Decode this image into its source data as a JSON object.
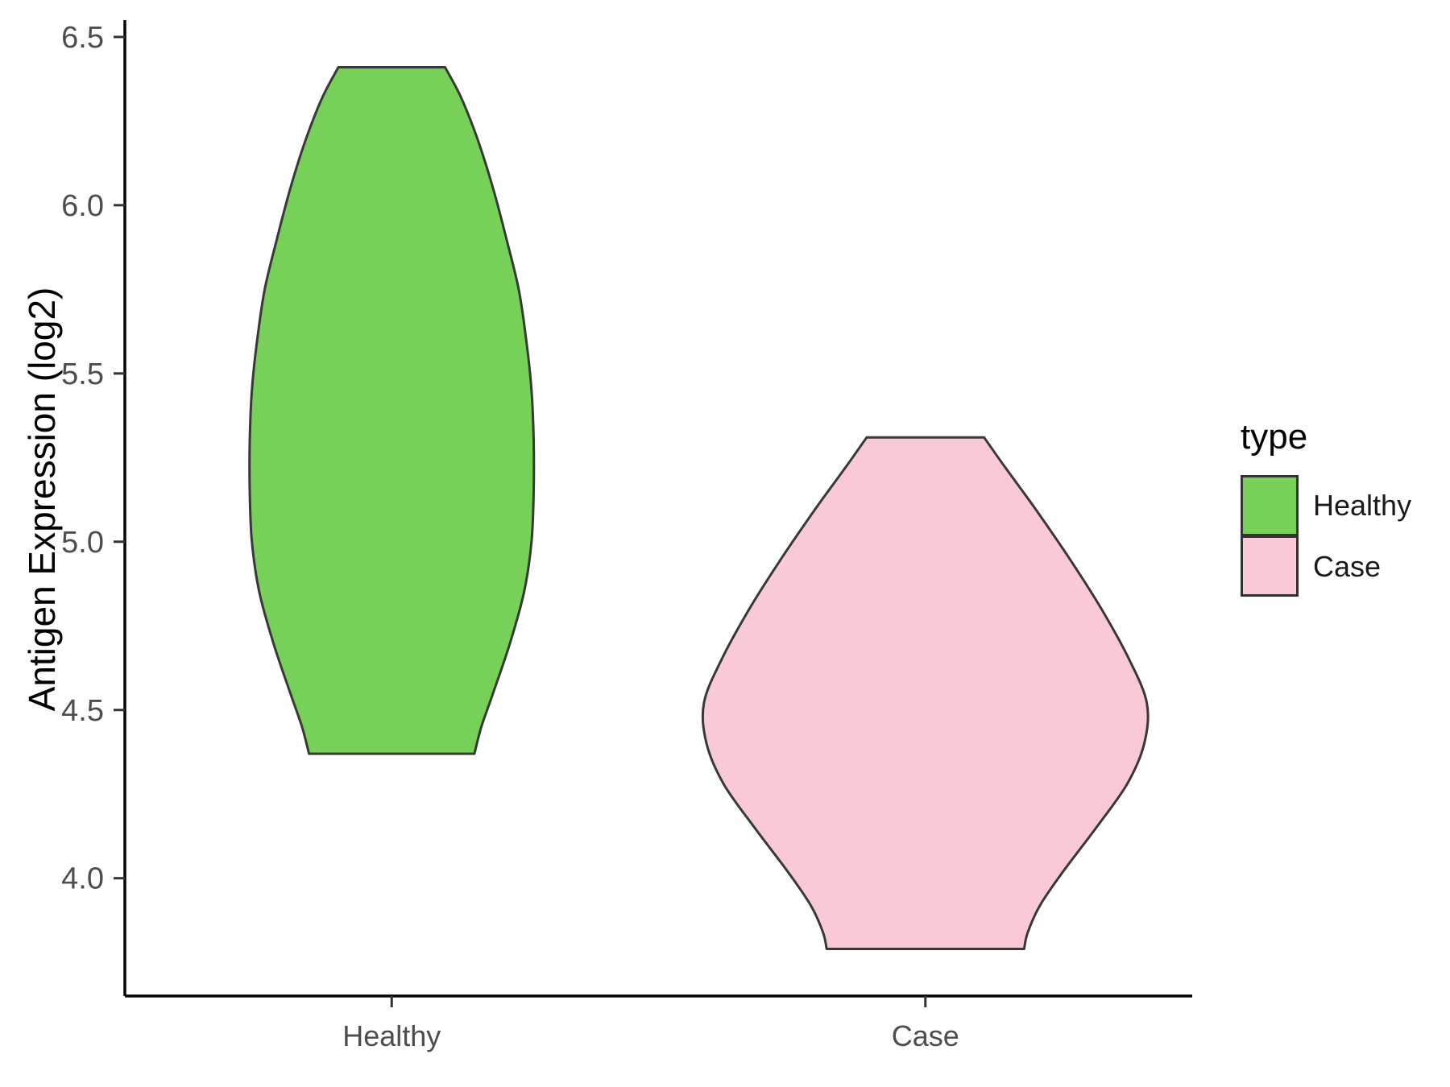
{
  "chart_data": {
    "type": "violin",
    "title": "",
    "xlabel": "",
    "ylabel": "Antigen Expression (log2)",
    "ylim": [
      3.65,
      6.55
    ],
    "yticks": [
      4.0,
      4.5,
      5.0,
      5.5,
      6.0,
      6.5
    ],
    "ytick_labels": [
      "4.0",
      "4.5",
      "5.0",
      "5.5",
      "6.0",
      "6.5"
    ],
    "categories": [
      "Healthy",
      "Case"
    ],
    "grid": "off",
    "legend": {
      "title": "type",
      "position": "right",
      "entries": [
        {
          "label": "Healthy",
          "fill": "#77D159"
        },
        {
          "label": "Case",
          "fill": "#F9C9D6"
        }
      ]
    },
    "series": [
      {
        "name": "Healthy",
        "x": 1,
        "fill": "#77D159",
        "stroke": "#383838",
        "range": [
          4.37,
          6.41
        ],
        "profile": [
          [
            6.41,
            0.1
          ],
          [
            6.32,
            0.13
          ],
          [
            6.2,
            0.16
          ],
          [
            6.05,
            0.19
          ],
          [
            5.9,
            0.215
          ],
          [
            5.75,
            0.238
          ],
          [
            5.6,
            0.252
          ],
          [
            5.45,
            0.262
          ],
          [
            5.3,
            0.266
          ],
          [
            5.15,
            0.266
          ],
          [
            5.0,
            0.262
          ],
          [
            4.85,
            0.248
          ],
          [
            4.7,
            0.222
          ],
          [
            4.55,
            0.19
          ],
          [
            4.45,
            0.168
          ],
          [
            4.37,
            0.155
          ]
        ]
      },
      {
        "name": "Case",
        "x": 2,
        "fill": "#F9C9D6",
        "stroke": "#383838",
        "range": [
          3.79,
          5.31
        ],
        "profile": [
          [
            5.31,
            0.11
          ],
          [
            5.22,
            0.15
          ],
          [
            5.1,
            0.205
          ],
          [
            4.95,
            0.27
          ],
          [
            4.8,
            0.33
          ],
          [
            4.65,
            0.382
          ],
          [
            4.52,
            0.415
          ],
          [
            4.4,
            0.41
          ],
          [
            4.28,
            0.378
          ],
          [
            4.15,
            0.32
          ],
          [
            4.02,
            0.258
          ],
          [
            3.92,
            0.215
          ],
          [
            3.84,
            0.192
          ],
          [
            3.79,
            0.185
          ]
        ]
      }
    ],
    "style": {
      "stroke_width": 3,
      "axis_color": "#000000",
      "tick_color": "#333333",
      "tick_label_color": "#4D4D4D",
      "text_color": "#000000"
    }
  }
}
